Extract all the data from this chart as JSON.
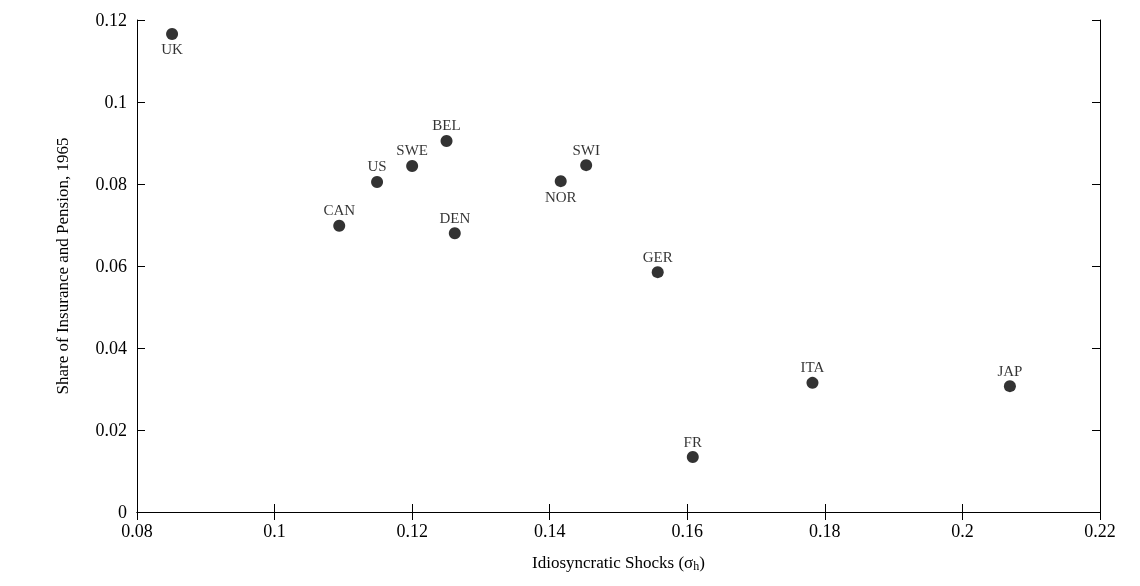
{
  "chart_data": {
    "type": "scatter",
    "xlabel": "Idiosyncratic Shocks (σ$_{h}$)",
    "ylabel": "Share of Insurance and Pension, 1965",
    "x": [
      0.0851,
      0.1094,
      0.1149,
      0.12,
      0.125,
      0.1262,
      0.1416,
      0.1453,
      0.1557,
      0.1608,
      0.1782,
      0.2069
    ],
    "series": [
      {
        "color": "#000000",
        "values": [
          0.1166,
          0.0698,
          0.0805,
          0.0844,
          0.0905,
          0.068,
          0.0807,
          0.0846,
          0.0585,
          0.0134,
          0.0315,
          0.0307
        ]
      }
    ],
    "marker": "circle",
    "xlim": [
      0.08,
      0.22
    ],
    "xticks": [
      0.08,
      0.1,
      0.12,
      0.14,
      0.16,
      0.18,
      0.2,
      0.22
    ],
    "ylim": [
      0,
      0.12
    ],
    "yticks": [
      0,
      0.02,
      0.04,
      0.06,
      0.08,
      0.1,
      0.12
    ],
    "annotations": [
      {
        "text": "UK",
        "x": 0.0851,
        "y": 0.1166
      },
      {
        "text": "CAN",
        "x": 0.1094,
        "y": 0.0698
      },
      {
        "text": "US",
        "x": 0.1149,
        "y": 0.0805
      },
      {
        "text": "SWE",
        "x": 0.12,
        "y": 0.0844
      },
      {
        "text": "BEL",
        "x": 0.125,
        "y": 0.0905
      },
      {
        "text": "DEN",
        "x": 0.1262,
        "y": 0.068
      },
      {
        "text": "NOR",
        "x": 0.1416,
        "y": 0.0807
      },
      {
        "text": "SWI",
        "x": 0.1453,
        "y": 0.0846
      },
      {
        "text": "GER",
        "x": 0.1557,
        "y": 0.0585
      },
      {
        "text": "FR",
        "x": 0.1608,
        "y": 0.0134
      },
      {
        "text": "ITA",
        "x": 0.1782,
        "y": 0.0315
      },
      {
        "text": "JAP",
        "x": 0.2069,
        "y": 0.0307
      }
    ]
  }
}
